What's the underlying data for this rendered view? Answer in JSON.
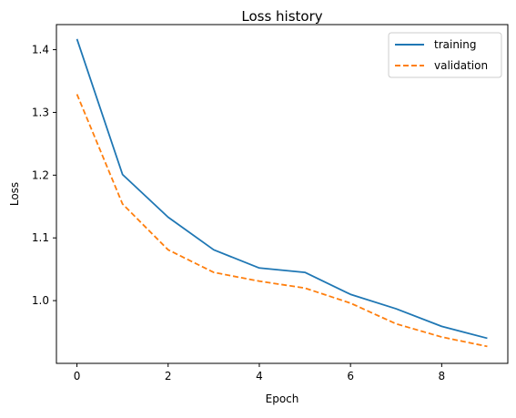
{
  "chart_data": {
    "type": "line",
    "title": "Loss history",
    "xlabel": "Epoch",
    "ylabel": "Loss",
    "xlim": [
      -0.45,
      9.45
    ],
    "ylim": [
      0.9,
      1.44
    ],
    "x_ticks": [
      0,
      2,
      4,
      6,
      8
    ],
    "y_ticks": [
      1.0,
      1.1,
      1.2,
      1.3,
      1.4
    ],
    "x_tick_labels": [
      "0",
      "2",
      "4",
      "6",
      "8"
    ],
    "y_tick_labels": [
      "1.0",
      "1.1",
      "1.2",
      "1.3",
      "1.4"
    ],
    "grid": false,
    "legend_position": "top-right",
    "x": [
      0,
      1,
      2,
      3,
      4,
      5,
      6,
      7,
      8,
      9
    ],
    "series": [
      {
        "name": "training",
        "color": "#1f77b4",
        "style": "solid",
        "values": [
          1.417,
          1.201,
          1.133,
          1.081,
          1.052,
          1.045,
          1.01,
          0.987,
          0.959,
          0.94
        ]
      },
      {
        "name": "validation",
        "color": "#ff7f0e",
        "style": "dashed",
        "values": [
          1.329,
          1.154,
          1.081,
          1.045,
          1.031,
          1.02,
          0.996,
          0.963,
          0.942,
          0.927
        ]
      }
    ]
  }
}
